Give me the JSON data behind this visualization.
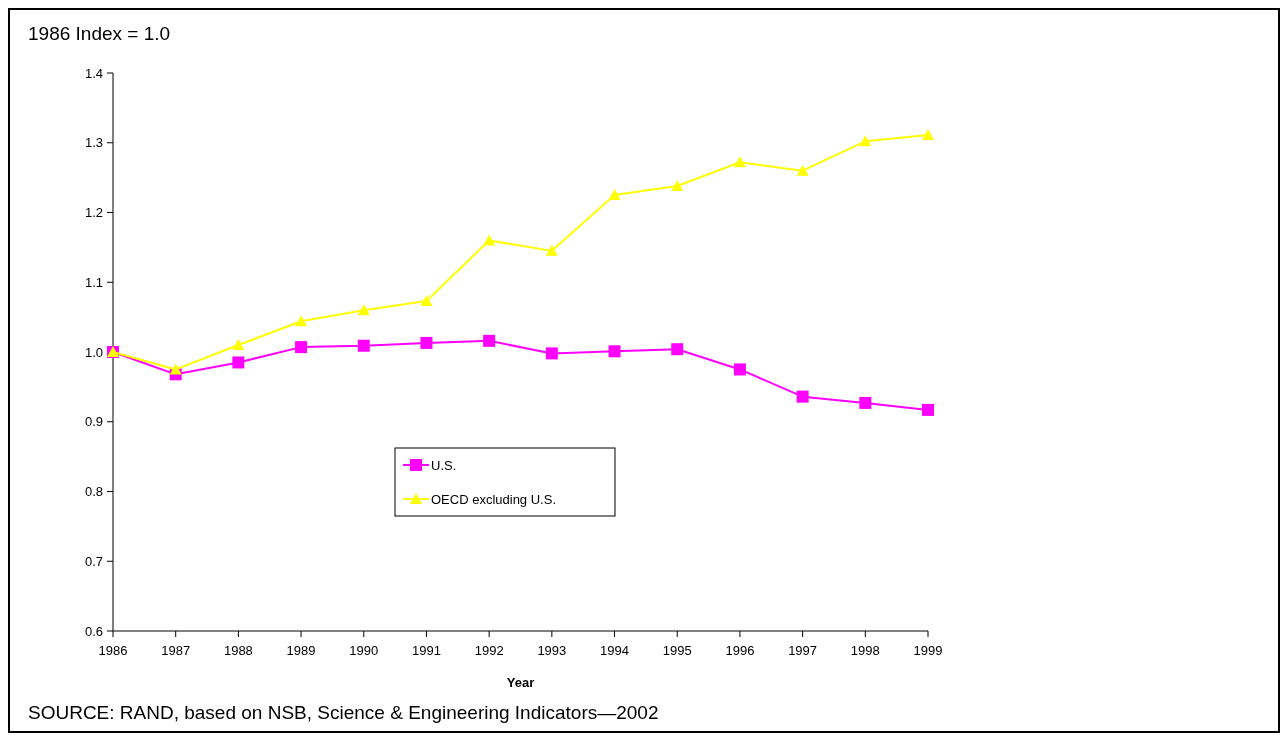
{
  "chart_data": {
    "type": "line",
    "title": "1986 Index = 1.0",
    "xlabel": "Year",
    "categories": [
      "1986",
      "1987",
      "1988",
      "1989",
      "1990",
      "1991",
      "1992",
      "1993",
      "1994",
      "1995",
      "1996",
      "1997",
      "1998",
      "1999"
    ],
    "series": [
      {
        "name": "U.S.",
        "color": "#ff00ff",
        "marker": "square",
        "values": [
          1.0,
          0.968,
          0.985,
          1.007,
          1.009,
          1.013,
          1.016,
          0.998,
          1.001,
          1.004,
          0.975,
          0.936,
          0.927,
          0.917
        ]
      },
      {
        "name": "OECD excluding U.S.",
        "color": "#ffff00",
        "marker": "triangle",
        "values": [
          1.0,
          0.975,
          1.01,
          1.044,
          1.06,
          1.073,
          1.16,
          1.145,
          1.225,
          1.238,
          1.272,
          1.26,
          1.302,
          1.311
        ]
      }
    ],
    "ylim": [
      0.6,
      1.4
    ],
    "yticks": [
      {
        "value": 0.6,
        "label": "0.6"
      },
      {
        "value": 0.7,
        "label": "0.7"
      },
      {
        "value": 0.8,
        "label": "0.8"
      },
      {
        "value": 0.9,
        "label": "0.9"
      },
      {
        "value": 1.0,
        "label": "1.0"
      },
      {
        "value": 1.1,
        "label": "1.1"
      },
      {
        "value": 1.2,
        "label": "1.2"
      },
      {
        "value": 1.3,
        "label": "1.3"
      },
      {
        "value": 1.4,
        "label": "1.4"
      }
    ],
    "legend": "center",
    "grid": false,
    "annotations": [
      "SOURCE:  RAND, based on NSB, Science & Engineering Indicators—2002"
    ]
  }
}
